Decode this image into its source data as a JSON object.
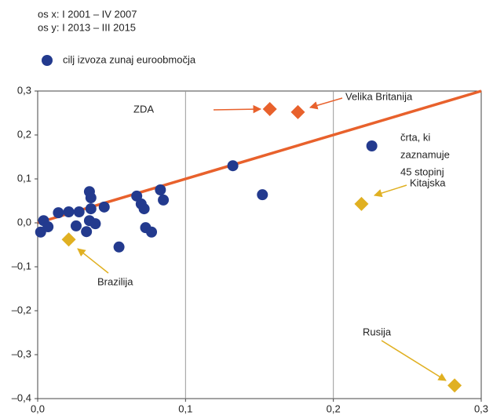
{
  "chart_data": {
    "type": "scatter",
    "subtitle": [
      "os x: I 2001 – IV 2007",
      "os y: I 2013 – III 2015"
    ],
    "xlim": [
      0,
      0.3
    ],
    "ylim": [
      -0.4,
      0.3
    ],
    "xticks": [
      {
        "value": 0,
        "label": "0,0"
      },
      {
        "value": 0.1,
        "label": "0,1"
      },
      {
        "value": 0.2,
        "label": "0,2"
      },
      {
        "value": 0.3,
        "label": "0,3"
      }
    ],
    "yticks": [
      {
        "value": -0.4,
        "label": "–0,4"
      },
      {
        "value": -0.3,
        "label": "–0,3"
      },
      {
        "value": -0.2,
        "label": "–0,2"
      },
      {
        "value": -0.1,
        "label": "–0,1"
      },
      {
        "value": 0,
        "label": "0,0"
      },
      {
        "value": 0.1,
        "label": "0,1"
      },
      {
        "value": 0.2,
        "label": "0,2"
      },
      {
        "value": 0.3,
        "label": "0,3"
      }
    ],
    "grid": "x",
    "series": [
      {
        "name": "cilj izvoza zunaj euroobmočja",
        "color": "#233a8e",
        "marker": "circle",
        "x": [
          0.002,
          0.004,
          0.007,
          0.014,
          0.021,
          0.026,
          0.028,
          0.033,
          0.035,
          0.036,
          0.036,
          0.035,
          0.039,
          0.045,
          0.055,
          0.067,
          0.07,
          0.072,
          0.073,
          0.077,
          0.083,
          0.085,
          0.132,
          0.152,
          0.226
        ],
        "values": [
          -0.021,
          0.005,
          -0.009,
          0.023,
          0.025,
          -0.007,
          0.025,
          -0.02,
          0.071,
          0.057,
          0.032,
          0.005,
          -0.002,
          0.036,
          -0.055,
          0.061,
          0.043,
          0.032,
          -0.011,
          -0.021,
          0.075,
          0.052,
          0.13,
          0.064,
          0.175
        ]
      },
      {
        "color": "#e8612c",
        "marker": "diamond",
        "x": [
          0.157,
          0.176
        ],
        "values": [
          0.259,
          0.252
        ]
      },
      {
        "color": "#e0b022",
        "marker": "diamond",
        "x": [
          0.021,
          0.219,
          0.282
        ],
        "values": [
          -0.038,
          0.043,
          -0.37
        ]
      }
    ],
    "reference_line": {
      "color": "#e8612c",
      "x": [
        0,
        0.3
      ],
      "values": [
        0,
        0.3
      ]
    },
    "annotations": [
      "ZDA",
      "Velika Britanija",
      [
        "črta, ki",
        "zaznamuje",
        "45 stopinj"
      ],
      "Kitajska",
      "Brazilija",
      "Rusija"
    ]
  }
}
